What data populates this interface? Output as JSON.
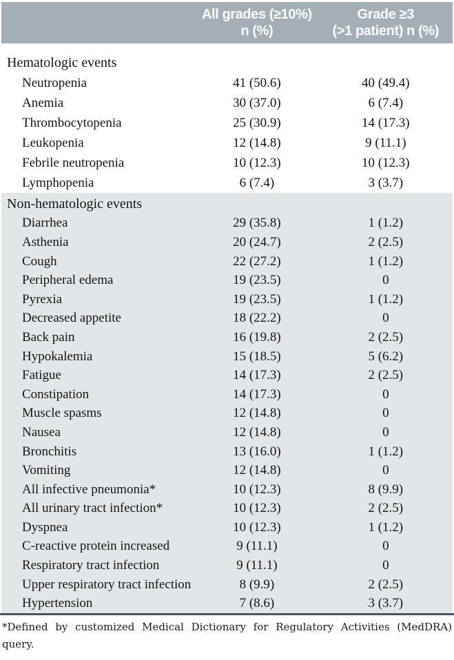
{
  "table": {
    "header": {
      "col_event": "",
      "col_all_grades": [
        "All grades (≥10%)",
        "n (%)"
      ],
      "col_grade3": [
        "Grade ≥3",
        "(>1 patient) n (%)"
      ]
    },
    "sections": [
      {
        "label": "Hematologic events",
        "rows": [
          [
            "Neutropenia",
            "41 (50.6)",
            "40 (49.4)"
          ],
          [
            "Anemia",
            "30 (37.0)",
            "6 (7.4)"
          ],
          [
            "Thrombocytopenia",
            "25 (30.9)",
            "14 (17.3)"
          ],
          [
            "Leukopenia",
            "12 (14.8)",
            "9 (11.1)"
          ],
          [
            "Febrile neutropenia",
            "10 (12.3)",
            "10 (12.3)"
          ],
          [
            "Lymphopenia",
            "6 (7.4)",
            "3 (3.7)"
          ]
        ]
      },
      {
        "label": "Non-hematologic events",
        "rows": [
          [
            "Diarrhea",
            "29 (35.8)",
            "1 (1.2)"
          ],
          [
            "Asthenia",
            "20 (24.7)",
            "2 (2.5)"
          ],
          [
            "Cough",
            "22 (27.2)",
            "1 (1.2)"
          ],
          [
            "Peripheral edema",
            "19 (23.5)",
            "0"
          ],
          [
            "Pyrexia",
            "19 (23.5)",
            "1 (1.2)"
          ],
          [
            "Decreased appetite",
            "18 (22.2)",
            "0"
          ],
          [
            "Back pain",
            "16 (19.8)",
            "2 (2.5)"
          ],
          [
            "Hypokalemia",
            "15 (18.5)",
            "5 (6.2)"
          ],
          [
            "Fatigue",
            "14 (17.3)",
            "2 (2.5)"
          ],
          [
            "Constipation",
            "14 (17.3)",
            "0"
          ],
          [
            "Muscle spasms",
            "12 (14.8)",
            "0"
          ],
          [
            "Nausea",
            "12 (14.8)",
            "0"
          ],
          [
            "Bronchitis",
            "13 (16.0)",
            "1 (1.2)"
          ],
          [
            "Vomiting",
            "12 (14.8)",
            "0"
          ],
          [
            "All infective pneumonia*",
            "10 (12.3)",
            "8 (9.9)"
          ],
          [
            "All urinary tract infection*",
            "10 (12.3)",
            "2 (2.5)"
          ],
          [
            "Dyspnea",
            "10 (12.3)",
            "1 (1.2)"
          ],
          [
            "C-reactive protein increased",
            "9 (11.1)",
            "0"
          ],
          [
            "Respiratory tract infection",
            "9 (11.1)",
            "0"
          ],
          [
            "Upper respiratory tract infection",
            "8 (9.9)",
            "2 (2.5)"
          ],
          [
            "Hypertension",
            "7 (8.6)",
            "3 (3.7)"
          ]
        ]
      }
    ],
    "footnote_lines": [
      "*Defined by customized Medical Dictionary for Regulatory Activities (MedDRA)",
      "query."
    ],
    "footnote_text": "*Defined by customized Medical Dictionary for Regulatory Activities (MedDRA) query."
  },
  "colors": {
    "header_bg": "#a4aeb6",
    "header_text": "#ffffff",
    "alt_section_bg": "#e3e6e8",
    "rule": "#4a5560"
  }
}
